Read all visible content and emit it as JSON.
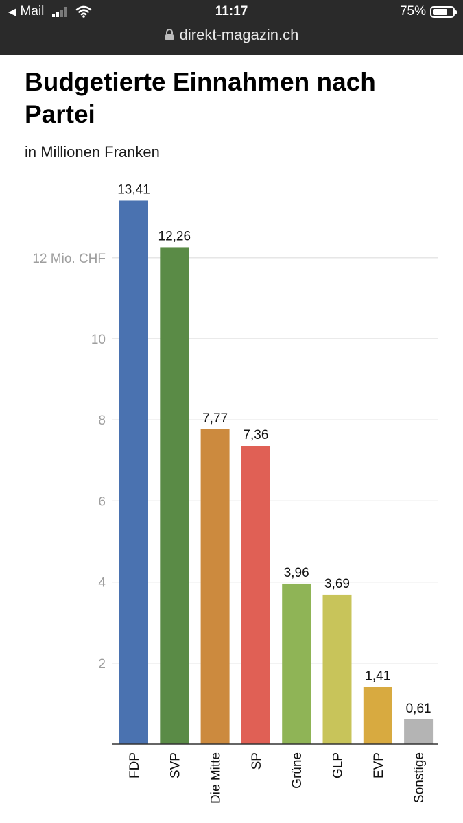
{
  "status_bar": {
    "back_app": "Mail",
    "time": "11:17",
    "battery_pct": "75%",
    "battery_level": 0.75
  },
  "browser": {
    "url": "direkt-magazin.ch"
  },
  "article": {
    "title": "Budgetierte Einnahmen nach Partei",
    "subtitle": "in Millionen Franken"
  },
  "chart_data": {
    "type": "bar",
    "categories": [
      "FDP",
      "SVP",
      "Die Mitte",
      "SP",
      "Grüne",
      "GLP",
      "EVP",
      "Sonstige"
    ],
    "values": [
      13.41,
      12.26,
      7.77,
      7.36,
      3.96,
      3.69,
      1.41,
      0.61
    ],
    "value_labels": [
      "13,41",
      "12,26",
      "7,77",
      "7,36",
      "3,96",
      "3,69",
      "1,41",
      "0,61"
    ],
    "colors": [
      "#4a72b0",
      "#5a8b46",
      "#cc8a3e",
      "#e06055",
      "#8fb456",
      "#c8c45a",
      "#d8aa40",
      "#b4b4b4"
    ],
    "yticks": [
      2,
      4,
      6,
      8,
      10,
      12
    ],
    "ytick_labels": [
      "2",
      "4",
      "6",
      "8",
      "10",
      "12 Mio. CHF"
    ],
    "ylim": [
      0,
      14
    ],
    "grid": true,
    "title": "Budgetierte Einnahmen nach Partei",
    "ylabel": ""
  }
}
